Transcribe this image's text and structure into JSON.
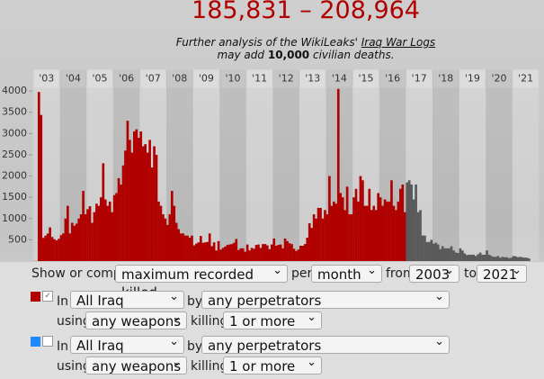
{
  "title": "185,831 – 208,964",
  "subtitle": {
    "line1_pre": "Further analysis of the WikiLeaks'",
    "line1_link": "Iraq War Logs",
    "line2_pre": "may add",
    "line2_bold": "10,000",
    "line2_post": "civilian deaths."
  },
  "chart_data": {
    "type": "bar",
    "ylim": [
      0,
      4500
    ],
    "yticks": [
      500,
      1000,
      1500,
      2000,
      2500,
      3000,
      3500,
      4000
    ],
    "years": [
      {
        "label": "'03",
        "color": "#b00000",
        "values": [
          3,
          2,
          3977,
          3437,
          545,
          597,
          646,
          793,
          566,
          515,
          487,
          524
        ]
      },
      {
        "label": "'04",
        "color": "#b00000",
        "values": [
          610,
          650,
          1000,
          1300,
          650,
          900,
          830,
          880,
          1000,
          1100,
          1650,
          1100
        ]
      },
      {
        "label": "'05",
        "color": "#b00000",
        "values": [
          1220,
          1290,
          900,
          1150,
          1350,
          1300,
          1500,
          2300,
          1450,
          1300,
          1400,
          1150
        ]
      },
      {
        "label": "'06",
        "color": "#b00000",
        "values": [
          1550,
          1600,
          1950,
          1800,
          2250,
          2600,
          3300,
          2850,
          2550,
          3050,
          3100,
          2900
        ]
      },
      {
        "label": "'07",
        "color": "#b00000",
        "values": [
          3050,
          2700,
          2750,
          2550,
          2850,
          2200,
          2700,
          2500,
          1400,
          1300,
          1100,
          1000
        ]
      },
      {
        "label": "'08",
        "color": "#b00000",
        "values": [
          850,
          1100,
          1650,
          1300,
          900,
          750,
          650,
          650,
          600,
          600,
          550,
          600
        ]
      },
      {
        "label": "'09",
        "color": "#b00000",
        "values": [
          370,
          410,
          440,
          590,
          430,
          440,
          450,
          650,
          350,
          440,
          250,
          470
        ]
      },
      {
        "label": "'10",
        "color": "#b00000",
        "values": [
          270,
          310,
          340,
          380,
          390,
          400,
          430,
          520,
          260,
          300,
          300,
          220
        ]
      },
      {
        "label": "'11",
        "color": "#b00000",
        "values": [
          390,
          250,
          310,
          290,
          380,
          390,
          310,
          400,
          400,
          370,
          280,
          390
        ]
      },
      {
        "label": "'12",
        "color": "#b00000",
        "values": [
          530,
          360,
          380,
          390,
          300,
          530,
          470,
          420,
          400,
          290,
          240,
          270
        ]
      },
      {
        "label": "'13",
        "color": "#b00000",
        "values": [
          360,
          360,
          400,
          550,
          890,
          780,
          1100,
          1000,
          1250,
          1250,
          1000,
          1200
        ]
      },
      {
        "label": "'14",
        "color": "#b00000",
        "values": [
          1100,
          2000,
          1300,
          1400,
          1350,
          4050,
          1600,
          1500,
          1200,
          1750,
          1100,
          1100
        ]
      },
      {
        "label": "'15",
        "color": "#b00000",
        "values": [
          1500,
          1700,
          1400,
          2000,
          1900,
          1300,
          1300,
          1700,
          1200,
          1300,
          1200,
          1600
        ]
      },
      {
        "label": "'16",
        "color": "#b00000",
        "values": [
          1500,
          1300,
          1450,
          1400,
          1400,
          1900,
          1300,
          1200,
          1400,
          1700,
          1800,
          1150
        ]
      },
      {
        "label": "'17",
        "color": "#5a5a5a",
        "values": [
          1850,
          1900,
          1800,
          1450,
          1800,
          1150,
          1200,
          600,
          600,
          450,
          450,
          500
        ]
      },
      {
        "label": "'18",
        "color": "#5a5a5a",
        "values": [
          410,
          430,
          390,
          280,
          350,
          300,
          300,
          300,
          350,
          250,
          200,
          190
        ]
      },
      {
        "label": "'19",
        "color": "#5a5a5a",
        "values": [
          300,
          250,
          180,
          140,
          150,
          150,
          150,
          120,
          160,
          200,
          150,
          150
        ]
      },
      {
        "label": "'20",
        "color": "#5a5a5a",
        "values": [
          250,
          150,
          120,
          100,
          100,
          120,
          80,
          100,
          90,
          90,
          70,
          80
        ]
      },
      {
        "label": "'21",
        "color": "#5a5a5a",
        "values": [
          120,
          110,
          90,
          100,
          90,
          80,
          80,
          60
        ]
      }
    ]
  },
  "controls": {
    "show_label": "Show or compare",
    "measure": "maximum recorded killed",
    "per_label": "per",
    "period": "month",
    "from_label": "from",
    "from": "2003",
    "to_label": "to",
    "to": "2021",
    "filters": [
      {
        "color": "#b00000",
        "checked": true,
        "in_label": "In",
        "region": "All Iraq",
        "by_label": "by",
        "perpetrators": "any perpetrators",
        "using_label": "using",
        "weapons": "any weapons",
        "killing_label": "killing",
        "killed": "1 or more"
      },
      {
        "color": "#1e88ff",
        "checked": false,
        "in_label": "In",
        "region": "All Iraq",
        "by_label": "by",
        "perpetrators": "any perpetrators",
        "using_label": "using",
        "weapons": "any weapons",
        "killing_label": "killing",
        "killed": "1 or more"
      }
    ]
  }
}
